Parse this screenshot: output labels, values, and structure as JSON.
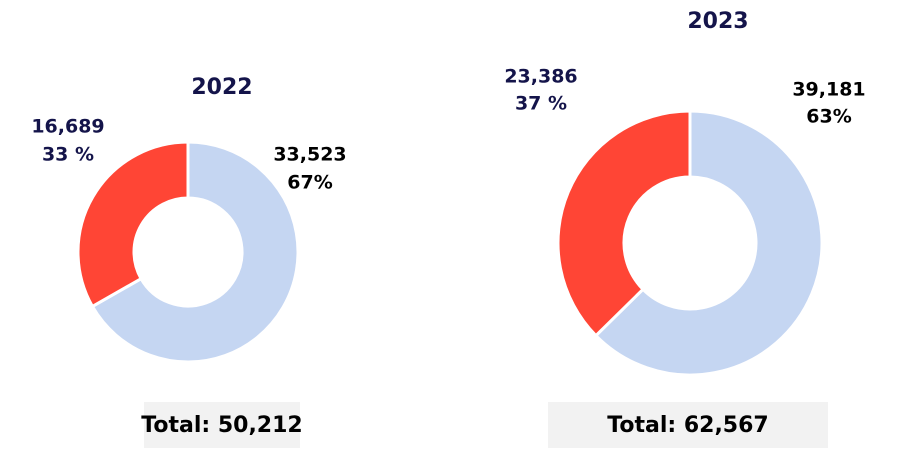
{
  "chart_data": [
    {
      "type": "pie",
      "donut": true,
      "title": "2022",
      "values": [
        33523,
        16689
      ],
      "value_labels": [
        "33,523",
        "16,689"
      ],
      "percent_labels": [
        "67%",
        "33 %"
      ],
      "colors": [
        "#c5d6f2",
        "#ff4535"
      ],
      "label_colors": [
        "#000000",
        "#14144a"
      ],
      "total": "Total: 50,212"
    },
    {
      "type": "pie",
      "donut": true,
      "title": "2023",
      "values": [
        39181,
        23386
      ],
      "value_labels": [
        "39,181",
        "23,386"
      ],
      "percent_labels": [
        "63%",
        "37 %"
      ],
      "colors": [
        "#c5d6f2",
        "#ff4535"
      ],
      "label_colors": [
        "#000000",
        "#14144a"
      ],
      "total": "Total: 62,567"
    }
  ]
}
